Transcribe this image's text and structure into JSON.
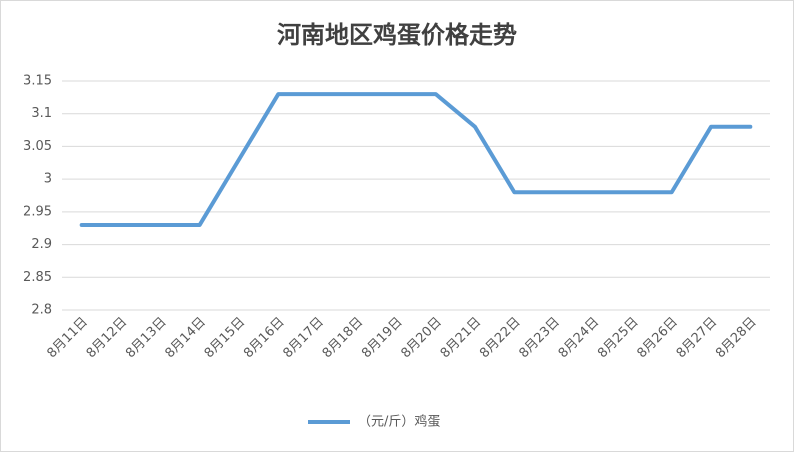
{
  "chart_data": {
    "type": "line",
    "title": "河南地区鸡蛋价格走势",
    "categories": [
      "8月11日",
      "8月12日",
      "8月13日",
      "8月14日",
      "8月15日",
      "8月16日",
      "8月17日",
      "8月18日",
      "8月19日",
      "8月20日",
      "8月21日",
      "8月22日",
      "8月23日",
      "8月24日",
      "8月25日",
      "8月26日",
      "8月27日",
      "8月28日"
    ],
    "series": [
      {
        "name": "（元/斤）鸡蛋",
        "color": "#5b9bd5",
        "values": [
          2.93,
          2.93,
          2.93,
          2.93,
          3.03,
          3.13,
          3.13,
          3.13,
          3.13,
          3.13,
          3.08,
          2.98,
          2.98,
          2.98,
          2.98,
          2.98,
          3.08,
          3.08
        ]
      }
    ],
    "ylim": [
      2.8,
      3.15
    ],
    "yticks": [
      2.8,
      2.85,
      2.9,
      2.95,
      3,
      3.05,
      3.1,
      3.15
    ],
    "grid": true,
    "legend": "bottom"
  }
}
